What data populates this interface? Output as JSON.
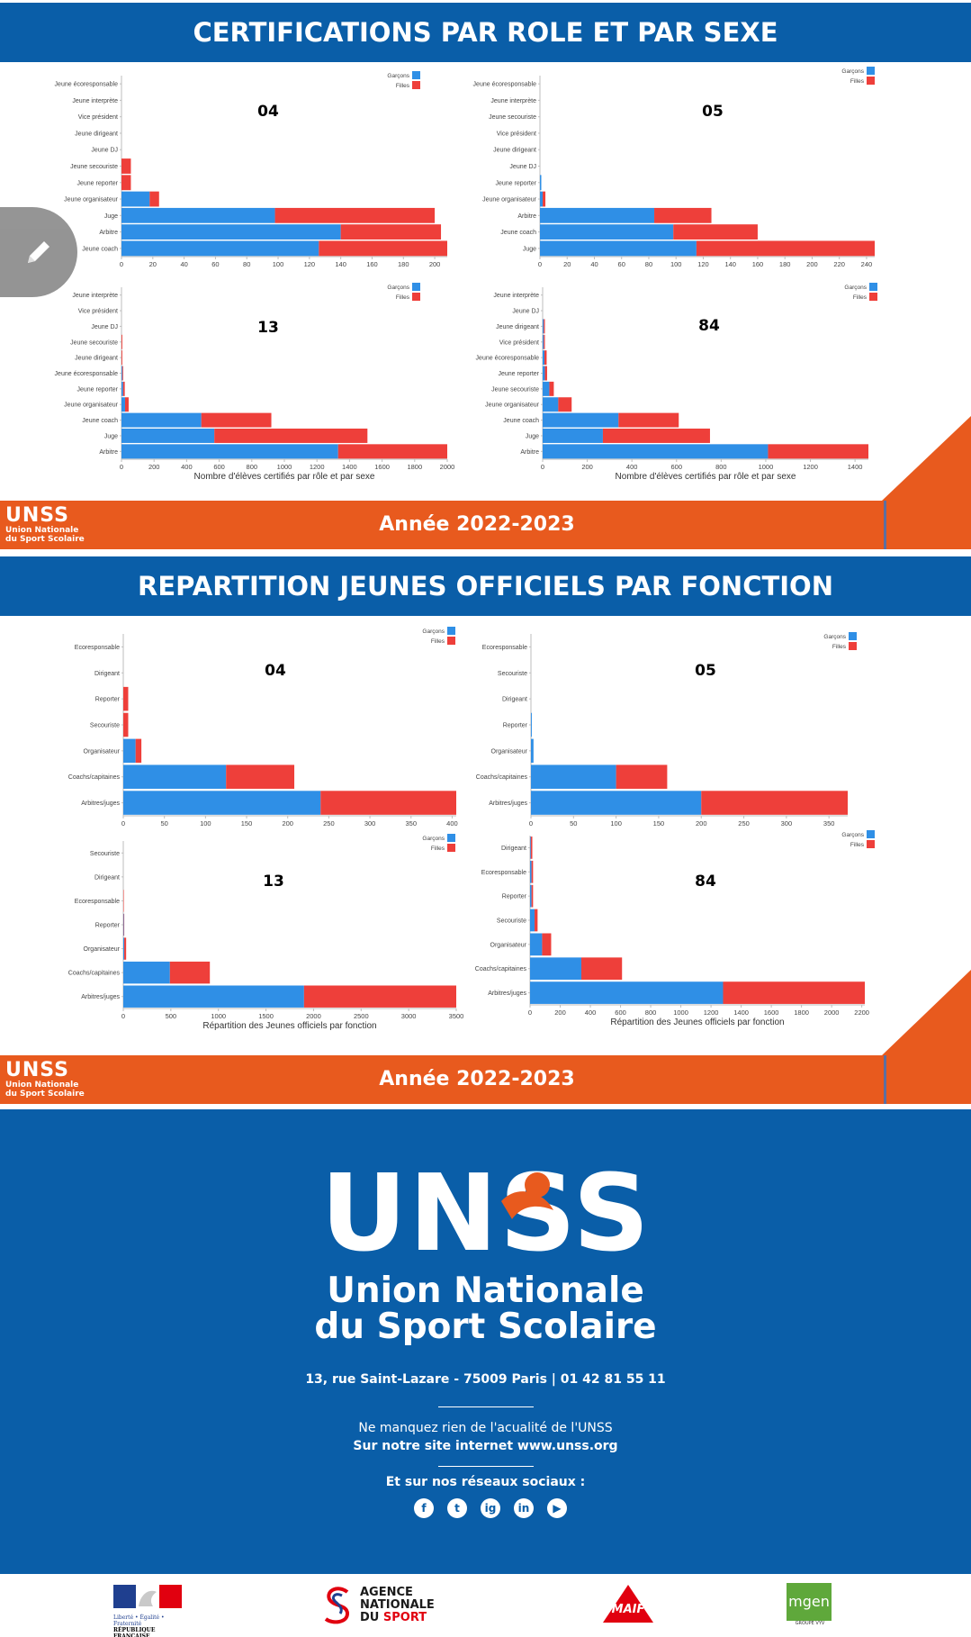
{
  "section1": {
    "title": "CERTIFICATIONS PAR ROLE ET PAR SEXE",
    "year": "Année 2022-2023"
  },
  "section2": {
    "title": "REPARTITION JEUNES OFFICIELS PAR FONCTION",
    "year": "Année 2022-2023"
  },
  "legend": {
    "boys": "Garçons",
    "girls": "Filles"
  },
  "colors": {
    "boys": "#2f8fe6",
    "girls": "#ee3f3a",
    "band": "#0a5ea8",
    "orange": "#e85a1e"
  },
  "chart_data": [
    {
      "type": "bar",
      "orientation": "horizontal",
      "stacked": true,
      "title": "04",
      "categories": [
        "Jeune écoresponsable",
        "Jeune interprète",
        "Vice président",
        "Jeune dirigeant",
        "Jeune DJ",
        "Jeune secouriste",
        "Jeune reporter",
        "Jeune organisateur",
        "Juge",
        "Arbitre",
        "Jeune coach"
      ],
      "series": [
        {
          "name": "Garçons",
          "values": [
            0,
            0,
            0,
            0,
            0,
            0,
            0,
            18,
            98,
            140,
            126
          ]
        },
        {
          "name": "Filles",
          "values": [
            0,
            0,
            0,
            0,
            0,
            6,
            6,
            6,
            102,
            64,
            82
          ]
        }
      ],
      "xlim": [
        0,
        208
      ],
      "xticks": [
        0,
        20,
        40,
        60,
        80,
        100,
        120,
        140,
        160,
        180,
        200
      ],
      "xlabel": ""
    },
    {
      "type": "bar",
      "orientation": "horizontal",
      "stacked": true,
      "title": "05",
      "categories": [
        "Jeune écoresponsable",
        "Jeune interprète",
        "Jeune secouriste",
        "Vice président",
        "Jeune dirigeant",
        "Jeune DJ",
        "Jeune reporter",
        "Jeune organisateur",
        "Arbitre",
        "Jeune coach",
        "Juge"
      ],
      "series": [
        {
          "name": "Garçons",
          "values": [
            0,
            0,
            0,
            0,
            0,
            0,
            1,
            2,
            84,
            98,
            115
          ]
        },
        {
          "name": "Filles",
          "values": [
            0,
            0,
            0,
            0,
            0,
            0,
            0,
            2,
            42,
            62,
            131
          ]
        }
      ],
      "xlim": [
        0,
        246
      ],
      "xticks": [
        0,
        20,
        40,
        60,
        80,
        100,
        120,
        140,
        160,
        180,
        200,
        220,
        240
      ],
      "xlabel": ""
    },
    {
      "type": "bar",
      "orientation": "horizontal",
      "stacked": true,
      "title": "13",
      "categories": [
        "Jeune interprète",
        "Vice président",
        "Jeune DJ",
        "Jeune secouriste",
        "Jeune dirigeant",
        "Jeune écoresponsable",
        "Jeune reporter",
        "Jeune organisateur",
        "Jeune coach",
        "Juge",
        "Arbitre"
      ],
      "series": [
        {
          "name": "Garçons",
          "values": [
            0,
            0,
            0,
            0,
            0,
            5,
            10,
            22,
            490,
            570,
            1330
          ]
        },
        {
          "name": "Filles",
          "values": [
            0,
            0,
            0,
            5,
            5,
            5,
            10,
            22,
            430,
            940,
            670
          ]
        }
      ],
      "xlim": [
        0,
        2000
      ],
      "xticks": [
        0,
        200,
        400,
        600,
        800,
        1000,
        1200,
        1400,
        1600,
        1800,
        2000
      ],
      "xlabel": "Nombre d'élèves certifiés par rôle et par sexe"
    },
    {
      "type": "bar",
      "orientation": "horizontal",
      "stacked": true,
      "title": "84",
      "categories": [
        "Jeune interprète",
        "Jeune DJ",
        "Jeune dirigeant",
        "Vice président",
        "Jeune écoresponsable",
        "Jeune reporter",
        "Jeune secouriste",
        "Jeune organisateur",
        "Jeune coach",
        "Juge",
        "Arbitre"
      ],
      "series": [
        {
          "name": "Garçons",
          "values": [
            0,
            0,
            5,
            5,
            8,
            10,
            30,
            70,
            340,
            270,
            1010
          ]
        },
        {
          "name": "Filles",
          "values": [
            0,
            0,
            5,
            5,
            10,
            10,
            20,
            60,
            270,
            480,
            450
          ]
        }
      ],
      "xlim": [
        0,
        1460
      ],
      "xticks": [
        0,
        200,
        400,
        600,
        800,
        1000,
        1200,
        1400
      ],
      "xlabel": "Nombre d'élèves certifiés par rôle et par sexe"
    },
    {
      "type": "bar",
      "orientation": "horizontal",
      "stacked": true,
      "title": "04",
      "categories": [
        "Ecoresponsable",
        "Dirigeant",
        "Reporter",
        "Secouriste",
        "Organisateur",
        "Coachs/capitaines",
        "Arbitres/juges"
      ],
      "series": [
        {
          "name": "Garçons",
          "values": [
            0,
            0,
            0,
            0,
            15,
            125,
            240
          ]
        },
        {
          "name": "Filles",
          "values": [
            0,
            0,
            6,
            6,
            7,
            83,
            165
          ]
        }
      ],
      "xlim": [
        0,
        405
      ],
      "xticks": [
        0,
        50,
        100,
        150,
        200,
        250,
        300,
        350,
        400
      ],
      "xlabel": ""
    },
    {
      "type": "bar",
      "orientation": "horizontal",
      "stacked": true,
      "title": "05",
      "categories": [
        "Ecoresponsable",
        "Secouriste",
        "Dirigeant",
        "Reporter",
        "Organisateur",
        "Coachs/capitaines",
        "Arbitres/juges"
      ],
      "series": [
        {
          "name": "Garçons",
          "values": [
            0,
            0,
            0,
            1,
            3,
            100,
            200
          ]
        },
        {
          "name": "Filles",
          "values": [
            0,
            0,
            0,
            0,
            0,
            60,
            172
          ]
        }
      ],
      "xlim": [
        0,
        372
      ],
      "xticks": [
        0,
        50,
        100,
        150,
        200,
        250,
        300,
        350
      ],
      "xlabel": ""
    },
    {
      "type": "bar",
      "orientation": "horizontal",
      "stacked": true,
      "title": "13",
      "categories": [
        "Secouriste",
        "Dirigeant",
        "Ecoresponsable",
        "Reporter",
        "Organisateur",
        "Coachs/capitaines",
        "Arbitres/juges"
      ],
      "series": [
        {
          "name": "Garçons",
          "values": [
            0,
            0,
            0,
            5,
            10,
            490,
            1900
          ]
        },
        {
          "name": "Filles",
          "values": [
            0,
            0,
            5,
            5,
            20,
            420,
            1600
          ]
        }
      ],
      "xlim": [
        0,
        3500
      ],
      "xticks": [
        0,
        500,
        1000,
        1500,
        2000,
        2500,
        3000,
        3500
      ],
      "xlabel": "Répartition des Jeunes officiels par fonction"
    },
    {
      "type": "bar",
      "orientation": "horizontal",
      "stacked": true,
      "title": "84",
      "categories": [
        "Dirigeant",
        "Ecoresponsable",
        "Reporter",
        "Secouriste",
        "Organisateur",
        "Coachs/capitaines",
        "Arbitres/juges"
      ],
      "series": [
        {
          "name": "Garçons",
          "values": [
            5,
            10,
            10,
            30,
            80,
            340,
            1280
          ]
        },
        {
          "name": "Filles",
          "values": [
            10,
            10,
            10,
            20,
            60,
            270,
            940
          ]
        }
      ],
      "xlim": [
        0,
        2220
      ],
      "xticks": [
        0,
        200,
        400,
        600,
        800,
        1000,
        1200,
        1400,
        1600,
        1800,
        2000,
        2200
      ],
      "xlabel": "Répartition des Jeunes officiels par fonction"
    }
  ],
  "footer": {
    "logo_text": "UNSS",
    "logo_sub1": "Union Nationale",
    "logo_sub2": "du Sport Scolaire",
    "address": "13, rue Saint-Lazare - 75009 Paris | 01 42 81 55 11",
    "news_line": "Ne manquez rien de l'acualité de l'UNSS",
    "site_line": "Sur notre site internet www.unss.org",
    "social_line": "Et sur nos réseaux sociaux :",
    "socials": [
      "f",
      "t",
      "ig",
      "in",
      "▶"
    ]
  },
  "partners": {
    "rf_line1": "Liberté • Égalité • Fraternité",
    "rf_line2": "RÉPUBLIQUE FRANÇAISE",
    "ans_line1": "AGENCE",
    "ans_line2": "NATIONALE",
    "ans_line3a": "DU ",
    "ans_line3b": "SPORT",
    "maif": "MAIF",
    "mgen": "mgen",
    "mgen_sub": "GROUPE VYV"
  }
}
